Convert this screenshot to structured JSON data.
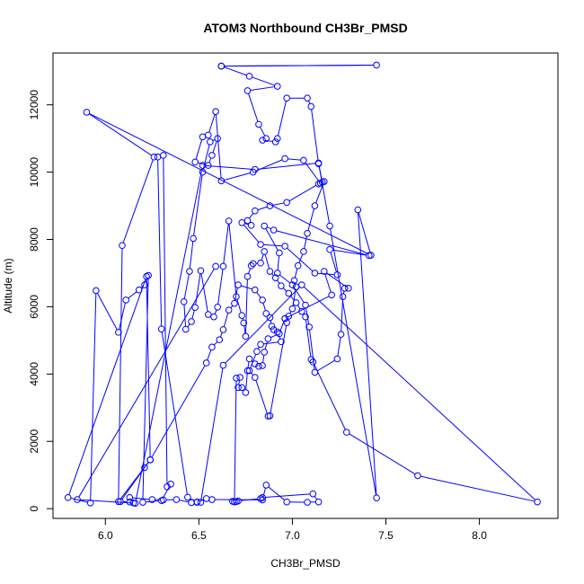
{
  "chart_data": {
    "type": "line",
    "title": "ATOM3 Northbound CH3Br_PMSD",
    "xlabel": "CH3Br_PMSD",
    "ylabel": "Altitude (m)",
    "xlim": [
      5.72,
      8.42
    ],
    "ylim": [
      -290,
      13540
    ],
    "xticks": [
      6.0,
      6.5,
      7.0,
      7.5,
      8.0
    ],
    "xtick_labels": [
      "6.0",
      "6.5",
      "7.0",
      "7.5",
      "8.0"
    ],
    "yticks": [
      0,
      2000,
      4000,
      6000,
      8000,
      10000,
      12000
    ],
    "ytick_labels": [
      "0",
      "2000",
      "4000",
      "6000",
      "8000",
      "10000",
      "12000"
    ],
    "grid": false,
    "legend": "none",
    "series_color": "#0000ff",
    "series": [
      {
        "marker": "open-circle",
        "points": [
          [
            6.62,
            13150
          ],
          [
            7.45,
            13180
          ],
          [
            6.62,
            13150
          ],
          [
            6.77,
            12850
          ],
          [
            6.92,
            12550
          ],
          [
            6.76,
            12420
          ],
          [
            6.82,
            11420
          ],
          [
            6.86,
            11000
          ],
          [
            6.84,
            10950
          ],
          [
            6.91,
            10900
          ],
          [
            6.92,
            11000
          ],
          [
            6.97,
            12200
          ],
          [
            7.08,
            12200
          ],
          [
            7.1,
            11950
          ],
          [
            7.14,
            10250
          ],
          [
            7.16,
            9700
          ],
          [
            7.14,
            9650
          ],
          [
            6.97,
            9100
          ],
          [
            6.88,
            9000
          ],
          [
            6.8,
            8850
          ],
          [
            6.76,
            8560
          ],
          [
            6.78,
            8420
          ],
          [
            6.73,
            8500
          ],
          [
            6.83,
            7850
          ],
          [
            6.96,
            7800
          ],
          [
            7.12,
            7000
          ],
          [
            7.24,
            6950
          ],
          [
            7.2,
            7700
          ],
          [
            7.41,
            7520
          ],
          [
            6.9,
            8280
          ],
          [
            6.85,
            8400
          ],
          [
            6.93,
            7600
          ],
          [
            6.92,
            7000
          ],
          [
            7.0,
            6650
          ],
          [
            7.07,
            6050
          ],
          [
            7.09,
            5400
          ],
          [
            7.12,
            4050
          ],
          [
            7.24,
            4450
          ],
          [
            7.26,
            5180
          ],
          [
            7.27,
            6300
          ],
          [
            7.28,
            6550
          ],
          [
            7.3,
            6550
          ],
          [
            7.17,
            7050
          ],
          [
            7.21,
            6350
          ],
          [
            6.96,
            5650
          ],
          [
            6.93,
            5200
          ],
          [
            6.87,
            5050
          ],
          [
            6.85,
            4650
          ],
          [
            6.84,
            4250
          ],
          [
            6.82,
            4230
          ],
          [
            6.8,
            4300
          ],
          [
            6.77,
            4450
          ],
          [
            6.76,
            4100
          ],
          [
            6.75,
            3450
          ],
          [
            6.73,
            3600
          ],
          [
            6.71,
            3600
          ],
          [
            6.72,
            3900
          ],
          [
            6.7,
            3880
          ],
          [
            6.69,
            200
          ],
          [
            6.68,
            220
          ],
          [
            6.7,
            210
          ],
          [
            6.71,
            230
          ],
          [
            6.83,
            300
          ],
          [
            6.84,
            330
          ],
          [
            7.11,
            440
          ],
          [
            7.14,
            200
          ],
          [
            7.08,
            190
          ],
          [
            6.97,
            200
          ],
          [
            6.86,
            700
          ],
          [
            6.84,
            260
          ],
          [
            6.57,
            270
          ],
          [
            6.54,
            300
          ],
          [
            6.49,
            190
          ],
          [
            6.46,
            180
          ],
          [
            6.38,
            270
          ],
          [
            6.31,
            260
          ],
          [
            6.25,
            270
          ],
          [
            6.13,
            330
          ],
          [
            6.15,
            170
          ],
          [
            6.13,
            200
          ],
          [
            6.08,
            210
          ],
          [
            6.21,
            1220
          ],
          [
            6.24,
            1450
          ],
          [
            6.54,
            4330
          ],
          [
            6.57,
            4800
          ],
          [
            6.61,
            5020
          ],
          [
            6.63,
            5320
          ],
          [
            6.66,
            5900
          ],
          [
            6.69,
            6100
          ],
          [
            6.71,
            6650
          ],
          [
            6.8,
            6500
          ],
          [
            6.84,
            6200
          ],
          [
            6.86,
            5800
          ],
          [
            6.88,
            5680
          ],
          [
            6.89,
            5420
          ],
          [
            6.9,
            5320
          ],
          [
            6.92,
            5250
          ],
          [
            6.94,
            4960
          ],
          [
            6.83,
            4880
          ],
          [
            6.81,
            4670
          ],
          [
            6.77,
            4100
          ],
          [
            6.8,
            3900
          ],
          [
            6.87,
            2750
          ],
          [
            6.88,
            2760
          ],
          [
            6.97,
            5530
          ],
          [
            6.96,
            5650
          ],
          [
            6.98,
            5720
          ],
          [
            7.0,
            5940
          ],
          [
            7.02,
            6590
          ],
          [
            7.01,
            6780
          ],
          [
            7.03,
            7220
          ],
          [
            7.06,
            7640
          ],
          [
            7.08,
            8180
          ],
          [
            7.12,
            9000
          ],
          [
            7.17,
            9720
          ],
          [
            7.15,
            9670
          ],
          [
            7.06,
            10350
          ],
          [
            6.96,
            10400
          ],
          [
            6.79,
            10000
          ],
          [
            6.62,
            9740
          ],
          [
            6.59,
            11800
          ],
          [
            6.55,
            11100
          ],
          [
            6.52,
            11050
          ],
          [
            6.48,
            10300
          ],
          [
            6.55,
            10200
          ],
          [
            6.57,
            10500
          ],
          [
            6.6,
            11000
          ],
          [
            6.56,
            10900
          ],
          [
            6.52,
            10000
          ],
          [
            6.47,
            8030
          ],
          [
            6.45,
            7050
          ],
          [
            6.42,
            6150
          ],
          [
            6.43,
            5330
          ],
          [
            6.46,
            5560
          ],
          [
            6.48,
            5980
          ],
          [
            6.51,
            7070
          ],
          [
            6.55,
            5770
          ],
          [
            6.58,
            5700
          ],
          [
            6.6,
            5990
          ],
          [
            6.63,
            7200
          ],
          [
            6.66,
            8550
          ],
          [
            6.7,
            6300
          ],
          [
            6.73,
            5740
          ],
          [
            6.74,
            5520
          ],
          [
            6.75,
            5120
          ],
          [
            6.76,
            6900
          ],
          [
            6.78,
            7220
          ],
          [
            6.79,
            7280
          ],
          [
            6.83,
            7300
          ],
          [
            6.85,
            7640
          ],
          [
            6.88,
            7050
          ],
          [
            6.91,
            6860
          ],
          [
            6.94,
            6620
          ],
          [
            6.98,
            6400
          ],
          [
            7.02,
            6120
          ],
          [
            7.05,
            5860
          ],
          [
            7.07,
            5700
          ],
          [
            7.1,
            4430
          ],
          [
            7.11,
            4360
          ],
          [
            7.29,
            2270
          ],
          [
            7.67,
            980
          ],
          [
            8.31,
            200
          ],
          [
            7.05,
            6650
          ],
          [
            6.63,
            4260
          ],
          [
            6.51,
            190
          ],
          [
            6.49,
            200
          ],
          [
            6.44,
            340
          ],
          [
            6.3,
            5340
          ],
          [
            6.28,
            10450
          ],
          [
            6.31,
            10500
          ],
          [
            6.33,
            650
          ],
          [
            6.35,
            730
          ],
          [
            6.3,
            240
          ],
          [
            6.2,
            190
          ],
          [
            6.23,
            6930
          ],
          [
            6.21,
            6650
          ],
          [
            6.18,
            6500
          ],
          [
            6.11,
            6200
          ],
          [
            6.07,
            5240
          ],
          [
            5.95,
            6480
          ],
          [
            5.92,
            170
          ],
          [
            5.8,
            330
          ],
          [
            6.22,
            6900
          ],
          [
            6.24,
            1450
          ],
          [
            6.07,
            210
          ],
          [
            6.09,
            7820
          ],
          [
            6.26,
            10450
          ],
          [
            5.9,
            11780
          ],
          [
            7.42,
            7530
          ],
          [
            7.35,
            8880
          ],
          [
            7.45,
            320
          ],
          [
            7.2,
            8400
          ],
          [
            7.14,
            10270
          ],
          [
            6.8,
            10080
          ],
          [
            6.52,
            10200
          ],
          [
            6.16,
            160
          ],
          [
            5.85,
            270
          ],
          [
            6.59,
            7200
          ]
        ]
      }
    ]
  }
}
